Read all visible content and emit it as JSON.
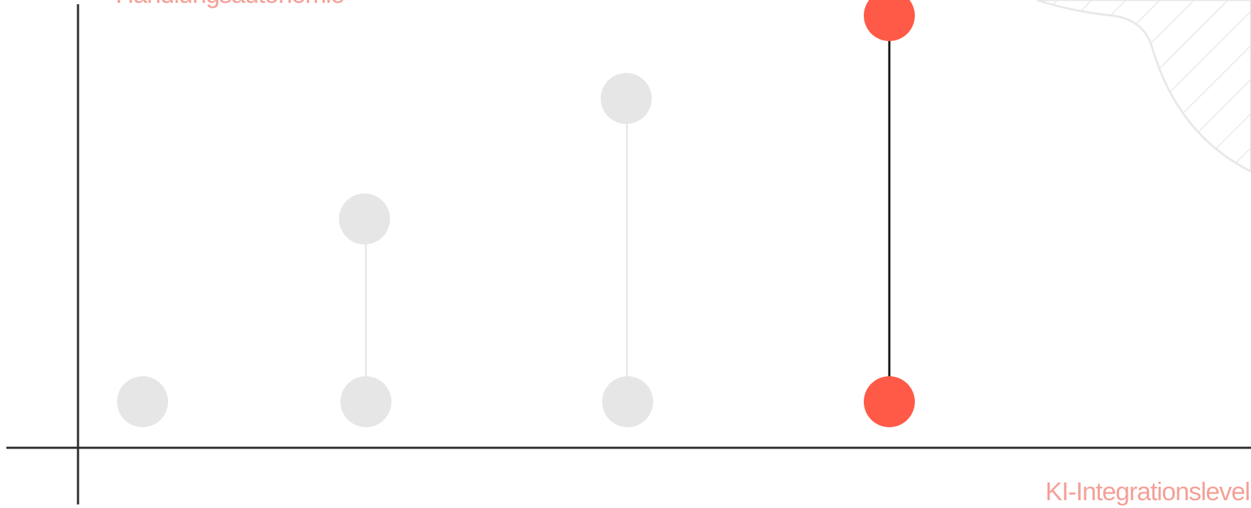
{
  "axis_labels": {
    "y": "Handlungsautonomie",
    "x": "KI-Integrationslevel"
  }
}
